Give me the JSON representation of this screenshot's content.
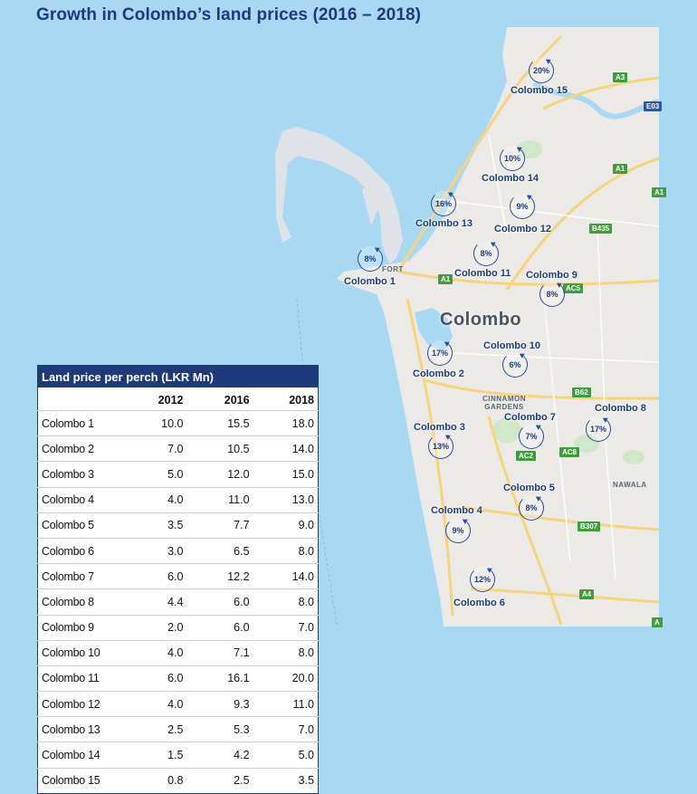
{
  "title": "Growth in Colombo’s land prices  (2016 – 2018)",
  "map": {
    "city_label": "Colombo",
    "place_labels": [
      "FORT",
      "CINNAMON GARDENS",
      "NAWALA"
    ],
    "road_shields": [
      "A3",
      "E03",
      "A1",
      "A1",
      "B435",
      "A1",
      "AC5",
      "B62",
      "AC2",
      "AC8",
      "B307",
      "A4",
      "A"
    ],
    "districts": [
      {
        "name": "Colombo 15",
        "growth": "20%"
      },
      {
        "name": "Colombo 14",
        "growth": "10%"
      },
      {
        "name": "Colombo 13",
        "growth": "16%"
      },
      {
        "name": "Colombo 12",
        "growth": "9%"
      },
      {
        "name": "Colombo 11",
        "growth": "8%"
      },
      {
        "name": "Colombo 1",
        "growth": "8%"
      },
      {
        "name": "Colombo 9",
        "growth": "8%"
      },
      {
        "name": "Colombo 2",
        "growth": "17%"
      },
      {
        "name": "Colombo 10",
        "growth": "6%"
      },
      {
        "name": "Colombo 3",
        "growth": "13%"
      },
      {
        "name": "Colombo 7",
        "growth": "7%"
      },
      {
        "name": "Colombo 8",
        "growth": "17%"
      },
      {
        "name": "Colombo 5",
        "growth": "8%"
      },
      {
        "name": "Colombo 4",
        "growth": "9%"
      },
      {
        "name": "Colombo 6",
        "growth": "12%"
      }
    ]
  },
  "table": {
    "caption": "Land price per perch (LKR Mn)",
    "columns": [
      "",
      "2012",
      "2016",
      "2018"
    ],
    "rows": [
      [
        "Colombo 1",
        "10.0",
        "15.5",
        "18.0"
      ],
      [
        "Colombo 2",
        "7.0",
        "10.5",
        "14.0"
      ],
      [
        "Colombo 3",
        "5.0",
        "12.0",
        "15.0"
      ],
      [
        "Colombo 4",
        "4.0",
        "11.0",
        "13.0"
      ],
      [
        "Colombo 5",
        "3.5",
        "7.7",
        "9.0"
      ],
      [
        "Colombo 6",
        "3.0",
        "6.5",
        "8.0"
      ],
      [
        "Colombo 7",
        "6.0",
        "12.2",
        "14.0"
      ],
      [
        "Colombo 8",
        "4.4",
        "6.0",
        "8.0"
      ],
      [
        "Colombo 9",
        "2.0",
        "6.0",
        "7.0"
      ],
      [
        "Colombo 10",
        "4.0",
        "7.1",
        "8.0"
      ],
      [
        "Colombo 11",
        "6.0",
        "16.1",
        "20.0"
      ],
      [
        "Colombo 12",
        "4.0",
        "9.3",
        "11.0"
      ],
      [
        "Colombo 13",
        "2.5",
        "5.3",
        "7.0"
      ],
      [
        "Colombo 14",
        "1.5",
        "4.2",
        "5.0"
      ],
      [
        "Colombo 15",
        "0.8",
        "2.5",
        "3.5"
      ]
    ]
  }
}
